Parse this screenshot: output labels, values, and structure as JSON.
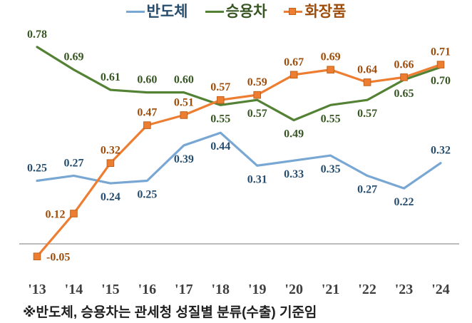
{
  "chart_data": {
    "type": "line",
    "title": "",
    "xlabel": "",
    "ylabel": "",
    "x": [
      "'13",
      "'14",
      "'15",
      "'16",
      "'17",
      "'18",
      "'19",
      "'20",
      "'21",
      "'22",
      "'23",
      "'24"
    ],
    "series": [
      {
        "key": "semiconductor",
        "name": "반도체",
        "color": "#79a7d4",
        "label_color": "#274e6e",
        "marker": "none",
        "values": [
          0.25,
          0.27,
          0.24,
          0.25,
          0.39,
          0.44,
          0.31,
          0.33,
          0.35,
          0.27,
          0.22,
          0.32
        ],
        "label_pos": [
          "above",
          "above",
          "below",
          "below",
          "below",
          "below",
          "below",
          "below",
          "below",
          "below",
          "below",
          "above"
        ]
      },
      {
        "key": "passenger-car",
        "name": "승용차",
        "color": "#548235",
        "label_color": "#375623",
        "marker": "none",
        "values": [
          0.78,
          0.69,
          0.61,
          0.6,
          0.6,
          0.55,
          0.57,
          0.49,
          0.55,
          0.57,
          0.65,
          0.7
        ],
        "label_pos": [
          "above",
          "above",
          "above",
          "above",
          "above",
          "below",
          "below",
          "below",
          "below",
          "below",
          "below",
          "below"
        ]
      },
      {
        "key": "cosmetics",
        "name": "화장품",
        "color": "#ed7d31",
        "label_color": "#9e4e0c",
        "marker": "square",
        "marker_border": "#c0621c",
        "values": [
          -0.05,
          0.12,
          0.32,
          0.47,
          0.51,
          0.57,
          0.59,
          0.67,
          0.69,
          0.64,
          0.66,
          0.71
        ],
        "label_pos": [
          "right",
          "left",
          "above",
          "above",
          "above",
          "above",
          "above",
          "above",
          "above",
          "above",
          "above",
          "above"
        ]
      }
    ],
    "ylim": [
      -0.1,
      0.85
    ],
    "baseline": 0,
    "baseline_color": "#a6a6a6",
    "axis_label_color": "#3f3f3f",
    "grid": false,
    "legend_position": "top"
  },
  "footnote": "※반도체, 승용차는 관세청 성질별 분류(수출) 기준임"
}
